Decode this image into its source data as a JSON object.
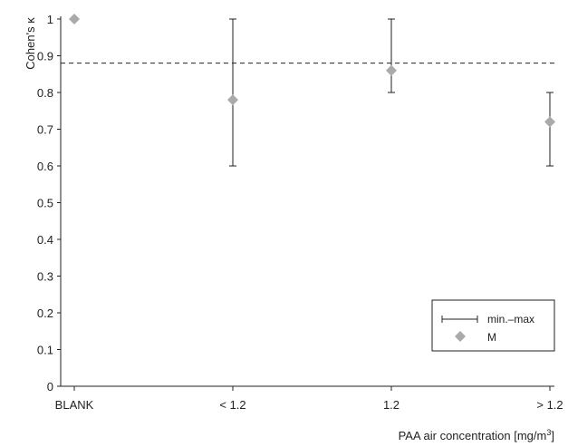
{
  "chart_data": {
    "type": "scatter",
    "categories": [
      "BLANK",
      "< 1.2",
      "1.2",
      "> 1.2"
    ],
    "series": [
      {
        "name": "M",
        "values": [
          1.0,
          0.78,
          0.86,
          0.72
        ],
        "min": [
          null,
          0.6,
          0.8,
          0.6
        ],
        "max": [
          null,
          1.0,
          1.0,
          0.8
        ]
      }
    ],
    "reference_line": {
      "y": 0.88,
      "style": "dashed"
    },
    "ylabel": "Cohen's κ",
    "xlabel": "PAA air concentration [mg/m",
    "xlabel_sup": "3",
    "xlabel_end": "]",
    "ylim": [
      0,
      1
    ],
    "yticks": [
      "0",
      "0.1",
      "0.2",
      "0.3",
      "0.4",
      "0.5",
      "0.6",
      "0.7",
      "0.8",
      "0.9",
      "1"
    ],
    "legend": {
      "position": "bottom-right",
      "errorbar_label": "min.–max",
      "marker_label": "M"
    },
    "colors": {
      "marker": "#aaaaaa",
      "line": "#222222"
    },
    "grid": false
  }
}
